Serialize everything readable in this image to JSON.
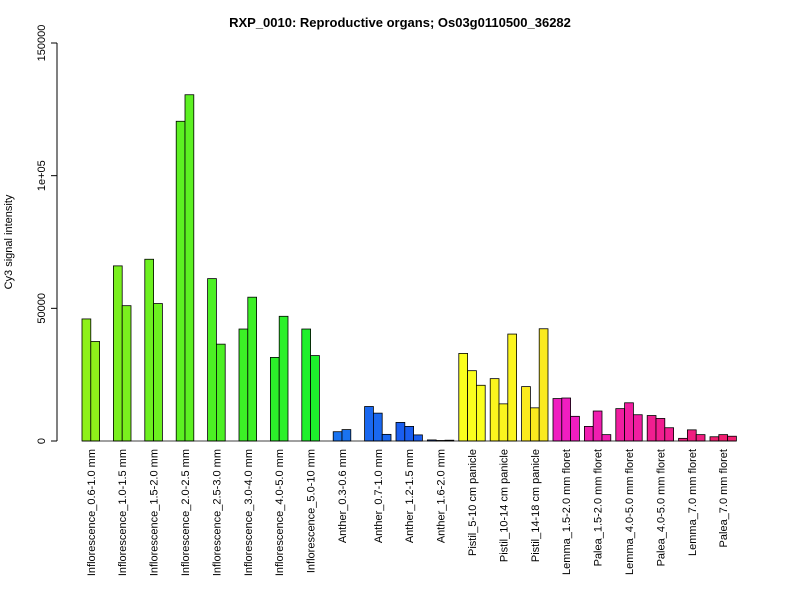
{
  "chart_data": {
    "type": "bar",
    "title": "RXP_0010: Reproductive organs; Os03g0110500_36282",
    "ylabel": "Cy3 signal intensity",
    "xlabel": "",
    "ylim": [
      0,
      150000
    ],
    "yticks": [
      0,
      50000,
      100000,
      150000
    ],
    "ytick_labels": [
      "0",
      "50000",
      "1e+05",
      "150000"
    ],
    "grid": false,
    "legend": "none",
    "categories": [
      "Inflorescence_0.6-1.0 mm",
      "Inflorescence_1.0-1.5 mm",
      "Inflorescence_1.5-2.0 mm",
      "Inflorescence_2.0-2.5 mm",
      "Inflorescence_2.5-3.0 mm",
      "Inflorescence_3.0-4.0 mm",
      "Inflorescence_4.0-5.0 mm",
      "Inflorescence_5.0-10 mm",
      "Anther_0.3-0.6 mm",
      "Anther_0.7-1.0 mm",
      "Anther_1.2-1.5 mm",
      "Anther_1.6-2.0 mm",
      "Pistil_5-10 cm panicle",
      "Pistil_10-14 cm panicle",
      "Pistil_14-18 cm panicle",
      "Lemma_1.5-2.0 mm floret",
      "Palea_1.5-2.0 mm floret",
      "Lemma_4.0-5.0 mm floret",
      "Palea_4.0-5.0 mm floret",
      "Lemma_7.0 mm floret",
      "Palea_7.0 mm floret"
    ],
    "groups": [
      {
        "color": "#8ef01a",
        "values": [
          46000,
          37500
        ]
      },
      {
        "color": "#7af01e",
        "values": [
          66000,
          51000
        ]
      },
      {
        "color": "#6cf020",
        "values": [
          68500,
          51800
        ]
      },
      {
        "color": "#5cf022",
        "values": [
          120500,
          130500
        ]
      },
      {
        "color": "#4cf024",
        "values": [
          61200,
          36500
        ]
      },
      {
        "color": "#3cf026",
        "values": [
          42200,
          54200
        ]
      },
      {
        "color": "#2cf02a",
        "values": [
          31500,
          47000
        ]
      },
      {
        "color": "#1ef02c",
        "values": [
          42200,
          32200
        ]
      },
      {
        "color": "#1a73f0",
        "values": [
          3500,
          4300
        ]
      },
      {
        "color": "#1a68f0",
        "values": [
          13000,
          10500,
          2500
        ]
      },
      {
        "color": "#1a5ef0",
        "values": [
          7000,
          5500,
          2300
        ]
      },
      {
        "color": "#1a54f0",
        "values": [
          400,
          200,
          300
        ]
      },
      {
        "color": "#fbff1e",
        "values": [
          33000,
          26500,
          21000
        ]
      },
      {
        "color": "#fbf51e",
        "values": [
          23500,
          14000,
          40300
        ]
      },
      {
        "color": "#fbea1e",
        "values": [
          20500,
          12500,
          42300
        ]
      },
      {
        "color": "#f01ec0",
        "values": [
          16000,
          16200,
          9300
        ]
      },
      {
        "color": "#f01eb0",
        "values": [
          5500,
          11300,
          2400
        ]
      },
      {
        "color": "#f01ea0",
        "values": [
          12200,
          14400,
          9900
        ]
      },
      {
        "color": "#f01e90",
        "values": [
          9600,
          8500,
          5000
        ]
      },
      {
        "color": "#f01e80",
        "values": [
          1000,
          4200,
          2400
        ]
      },
      {
        "color": "#f01e70",
        "values": [
          1600,
          2400,
          1800
        ]
      }
    ]
  }
}
